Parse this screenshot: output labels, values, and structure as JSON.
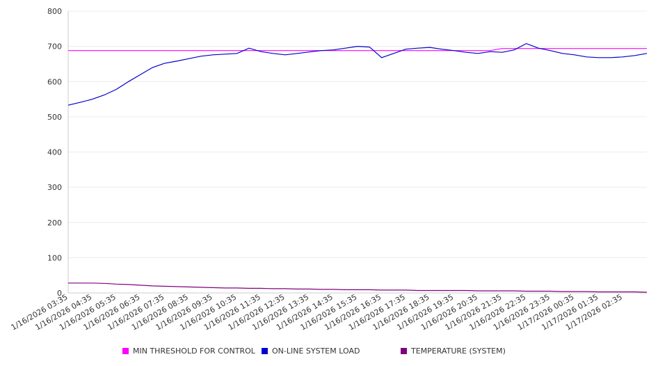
{
  "chart_data": {
    "type": "line",
    "title": "",
    "xlabel": "",
    "ylabel": "",
    "ylim": [
      0,
      800
    ],
    "yticks": [
      0,
      100,
      200,
      300,
      400,
      500,
      600,
      700,
      800
    ],
    "grid": true,
    "legend_position": "bottom",
    "x_tick_labels": [
      "1/16/2026 03:35",
      "1/16/2026 04:35",
      "1/16/2026 05:35",
      "1/16/2026 06:35",
      "1/16/2026 07:35",
      "1/16/2026 08:35",
      "1/16/2026 09:35",
      "1/16/2026 10:35",
      "1/16/2026 11:35",
      "1/16/2026 12:35",
      "1/16/2026 13:35",
      "1/16/2026 14:35",
      "1/16/2026 15:35",
      "1/16/2026 16:35",
      "1/16/2026 17:35",
      "1/16/2026 18:35",
      "1/16/2026 19:35",
      "1/16/2026 20:35",
      "1/16/2026 21:35",
      "1/16/2026 22:35",
      "1/16/2026 23:35",
      "1/17/2026 00:35",
      "1/17/2026 01:35",
      "1/17/2026 02:35"
    ],
    "x_hours": [
      0,
      0.5,
      1,
      1.5,
      2,
      2.5,
      3,
      3.5,
      4,
      4.5,
      5,
      5.5,
      6,
      6.5,
      7,
      7.5,
      8,
      8.5,
      9,
      9.5,
      10,
      10.5,
      11,
      11.5,
      12,
      12.5,
      13,
      13.5,
      14,
      14.5,
      15,
      15.5,
      16,
      16.5,
      17,
      17.5,
      18,
      18.5,
      19,
      19.5,
      20,
      20.5,
      21,
      21.5,
      22,
      22.5,
      23,
      23.5,
      24
    ],
    "series": [
      {
        "name": "MIN THRESHOLD FOR CONTROL",
        "color": "#ff00ff",
        "values": [
          688,
          688,
          688,
          688,
          688,
          688,
          688,
          688,
          688,
          688,
          688,
          688,
          688,
          688,
          688,
          688,
          688,
          688,
          688,
          688,
          688,
          688,
          688,
          688,
          688,
          688,
          688,
          688,
          688,
          688,
          688,
          688,
          688,
          688,
          688,
          688,
          694,
          694,
          694,
          694,
          694,
          694,
          694,
          694,
          694,
          694,
          694,
          694,
          694
        ]
      },
      {
        "name": "ON-LINE SYSTEM LOAD",
        "color": "#0000cc",
        "values": [
          533,
          541,
          550,
          562,
          578,
          600,
          620,
          640,
          652,
          658,
          665,
          672,
          676,
          678,
          680,
          695,
          685,
          680,
          676,
          680,
          684,
          688,
          690,
          695,
          700,
          698,
          668,
          680,
          692,
          695,
          697,
          692,
          688,
          683,
          680,
          685,
          683,
          690,
          708,
          695,
          688,
          680,
          676,
          670,
          668,
          668,
          670,
          674,
          680
        ]
      },
      {
        "name": "TEMPERATURE (SYSTEM)",
        "color": "#800080",
        "values": [
          28,
          28,
          28,
          27,
          25,
          24,
          22,
          20,
          19,
          18,
          17,
          16,
          15,
          14,
          14,
          13,
          13,
          12,
          12,
          11,
          11,
          10,
          10,
          9,
          9,
          9,
          8,
          8,
          8,
          7,
          7,
          7,
          7,
          7,
          6,
          6,
          6,
          6,
          5,
          5,
          5,
          4,
          4,
          4,
          3,
          3,
          3,
          3,
          2
        ]
      }
    ]
  }
}
